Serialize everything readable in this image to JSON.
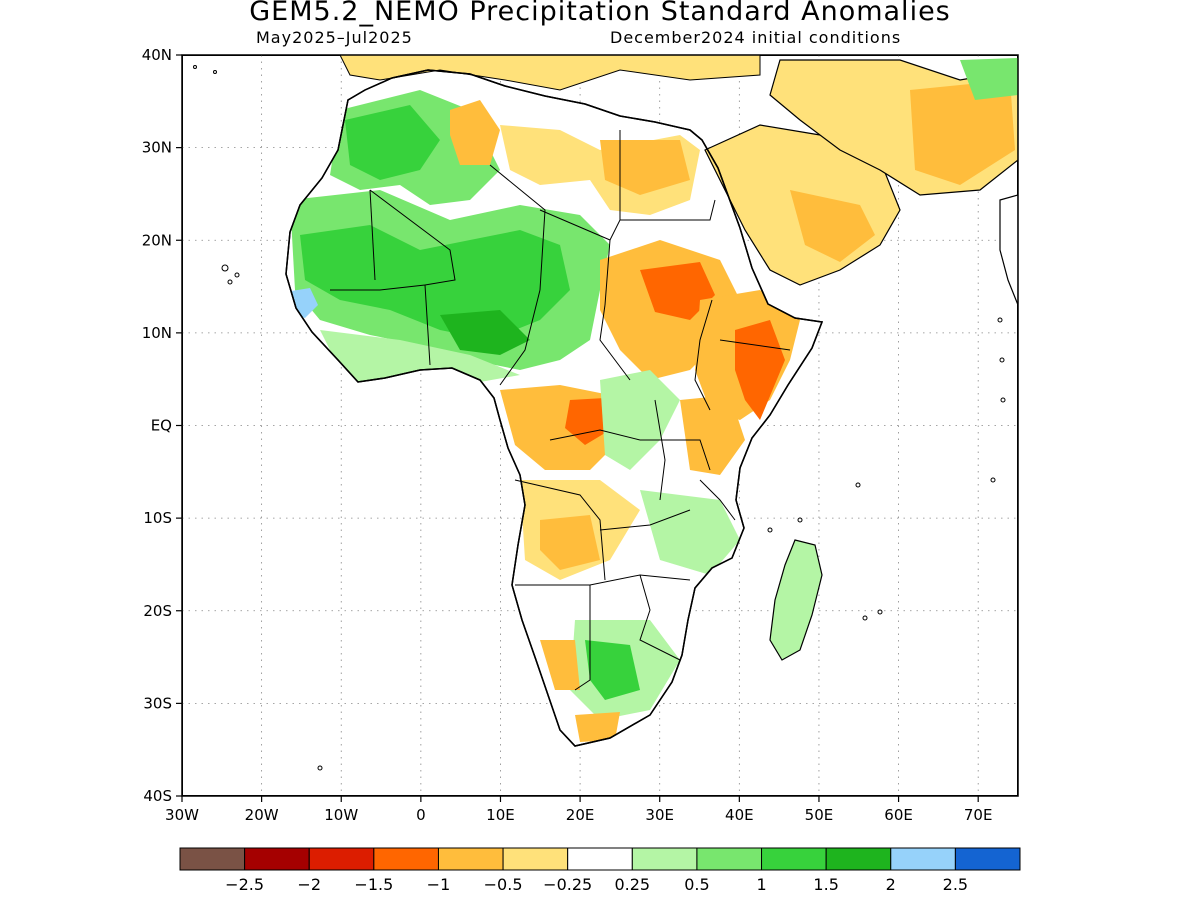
{
  "header": {
    "title": "GEM5.2_NEMO Precipitation Standard Anomalies",
    "period": "May2025–Jul2025",
    "init": "December2024 initial conditions"
  },
  "axes": {
    "lat_labels": [
      "40N",
      "30N",
      "20N",
      "10N",
      "EQ",
      "10S",
      "20S",
      "30S",
      "40S"
    ],
    "lat_values": [
      40,
      30,
      20,
      10,
      0,
      -10,
      -20,
      -30,
      -40
    ],
    "lon_labels": [
      "30W",
      "20W",
      "10W",
      "0",
      "10E",
      "20E",
      "30E",
      "40E",
      "50E",
      "60E",
      "70E"
    ],
    "lon_values": [
      -30,
      -20,
      -10,
      0,
      10,
      20,
      30,
      40,
      50,
      60,
      70
    ],
    "lon_range": [
      -30,
      75
    ],
    "lat_range": [
      -40,
      40
    ],
    "grid": "dotted"
  },
  "legend": {
    "colors": [
      "#7a5245",
      "#a50000",
      "#dc1d00",
      "#ff6600",
      "#ffbd3c",
      "#ffe17a",
      "#ffffff",
      "#b4f5a5",
      "#78e66e",
      "#37d23c",
      "#1eb41e",
      "#96d2fa",
      "#1464d2"
    ],
    "labels": [
      "−2.5",
      "−2",
      "−1.5",
      "−1",
      "−0.5",
      "−0.25",
      "0.25",
      "0.5",
      "1",
      "1.5",
      "2",
      "2.5"
    ]
  },
  "regions": [
    {
      "name": "west-africa-sahel",
      "class": "1.5",
      "color": "#37d23c"
    },
    {
      "name": "sahara-west",
      "class": "1",
      "color": "#78e66e"
    },
    {
      "name": "guinea-coast",
      "class": "0.5",
      "color": "#b4f5a5"
    },
    {
      "name": "senegal-wet-spot",
      "class": "2.5",
      "color": "#96d2fa"
    },
    {
      "name": "libya-egypt",
      "class": "-0.5",
      "color": "#ffbd3c"
    },
    {
      "name": "sudan-ethiopia",
      "class": "-1",
      "color": "#ff6600"
    },
    {
      "name": "horn-of-africa",
      "class": "-1",
      "color": "#ff6600"
    },
    {
      "name": "arabia",
      "class": "-0.5",
      "color": "#ffbd3c"
    },
    {
      "name": "congo-basin",
      "class": "-0.5",
      "color": "#ffbd3c"
    },
    {
      "name": "southern-africa",
      "class": "0.5",
      "color": "#b4f5a5"
    },
    {
      "name": "madagascar",
      "class": "0.5",
      "color": "#b4f5a5"
    }
  ]
}
